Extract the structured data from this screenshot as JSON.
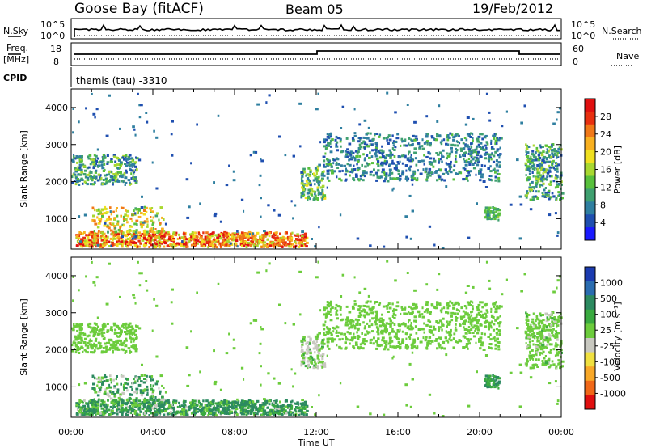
{
  "header": {
    "station": "Goose Bay (fitACF)",
    "beam": "Beam 05",
    "date": "19/Feb/2012"
  },
  "noise_panel": {
    "left_label": "N.Sky",
    "right_label": "N.Search",
    "left_ticks": [
      "10^5",
      "10^0"
    ],
    "right_ticks": [
      "10^5",
      "10^0"
    ]
  },
  "freq_panel": {
    "left_label_1": "Freq.",
    "left_label_2": "[MHz]",
    "left_ticks": [
      "18",
      "8"
    ],
    "right_label": "Nave",
    "right_ticks": [
      "60",
      "0"
    ],
    "cpid_label": "CPID",
    "program": "themis (tau) -3310"
  },
  "chart_data": [
    {
      "type": "heatmap",
      "name": "power",
      "ylabel": "Slant Range [km]",
      "ylim": [
        180,
        4500
      ],
      "y_ticks": [
        "1000",
        "2000",
        "3000",
        "4000"
      ],
      "xlim_hours": [
        0,
        24
      ],
      "colorbar": {
        "label": "Power [dB]",
        "ticks": [
          "4",
          "8",
          "12",
          "16",
          "20",
          "24",
          "28"
        ],
        "colors": [
          "#1a1aff",
          "#1f4fb0",
          "#2f7fa0",
          "#3fa070",
          "#58c03c",
          "#a8d830",
          "#f0e020",
          "#f8b020",
          "#f07818",
          "#e83010",
          "#e01010"
        ]
      }
    },
    {
      "type": "heatmap",
      "name": "velocity",
      "ylabel": "Slant Range [km]",
      "ylim": [
        180,
        4500
      ],
      "y_ticks": [
        "1000",
        "2000",
        "3000",
        "4000"
      ],
      "xlim_hours": [
        0,
        24
      ],
      "colorbar": {
        "label": "Velocity [m s⁻¹]",
        "ticks": [
          "1000",
          "500",
          "100",
          "25",
          "-25",
          "-100",
          "-500",
          "-1000"
        ],
        "colors": [
          "#1b3bb0",
          "#2a6cb0",
          "#2c8a60",
          "#3aaa40",
          "#6ccc3c",
          "#c8c8c0",
          "#f0e040",
          "#f8a828",
          "#f06818",
          "#e01010"
        ]
      }
    }
  ],
  "x_axis": {
    "tick_labels": [
      "00:00",
      "04:00",
      "08:00",
      "12:00",
      "16:00",
      "20:00",
      "00:00"
    ],
    "label": "Time UT"
  }
}
